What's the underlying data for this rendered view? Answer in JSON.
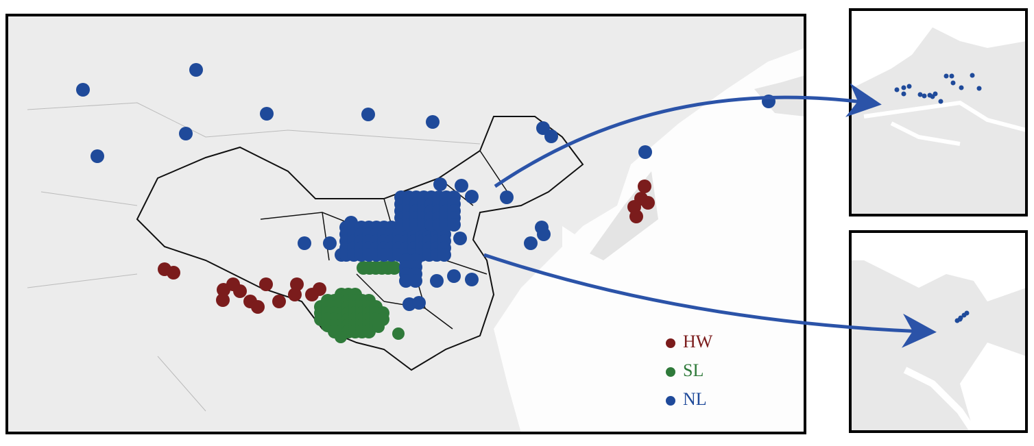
{
  "legend": {
    "items": [
      {
        "label": "HW",
        "color": "#7b1c1c"
      },
      {
        "label": "SL",
        "color": "#2f7a3a"
      },
      {
        "label": "NL",
        "color": "#1f4a9a"
      }
    ]
  }
}
